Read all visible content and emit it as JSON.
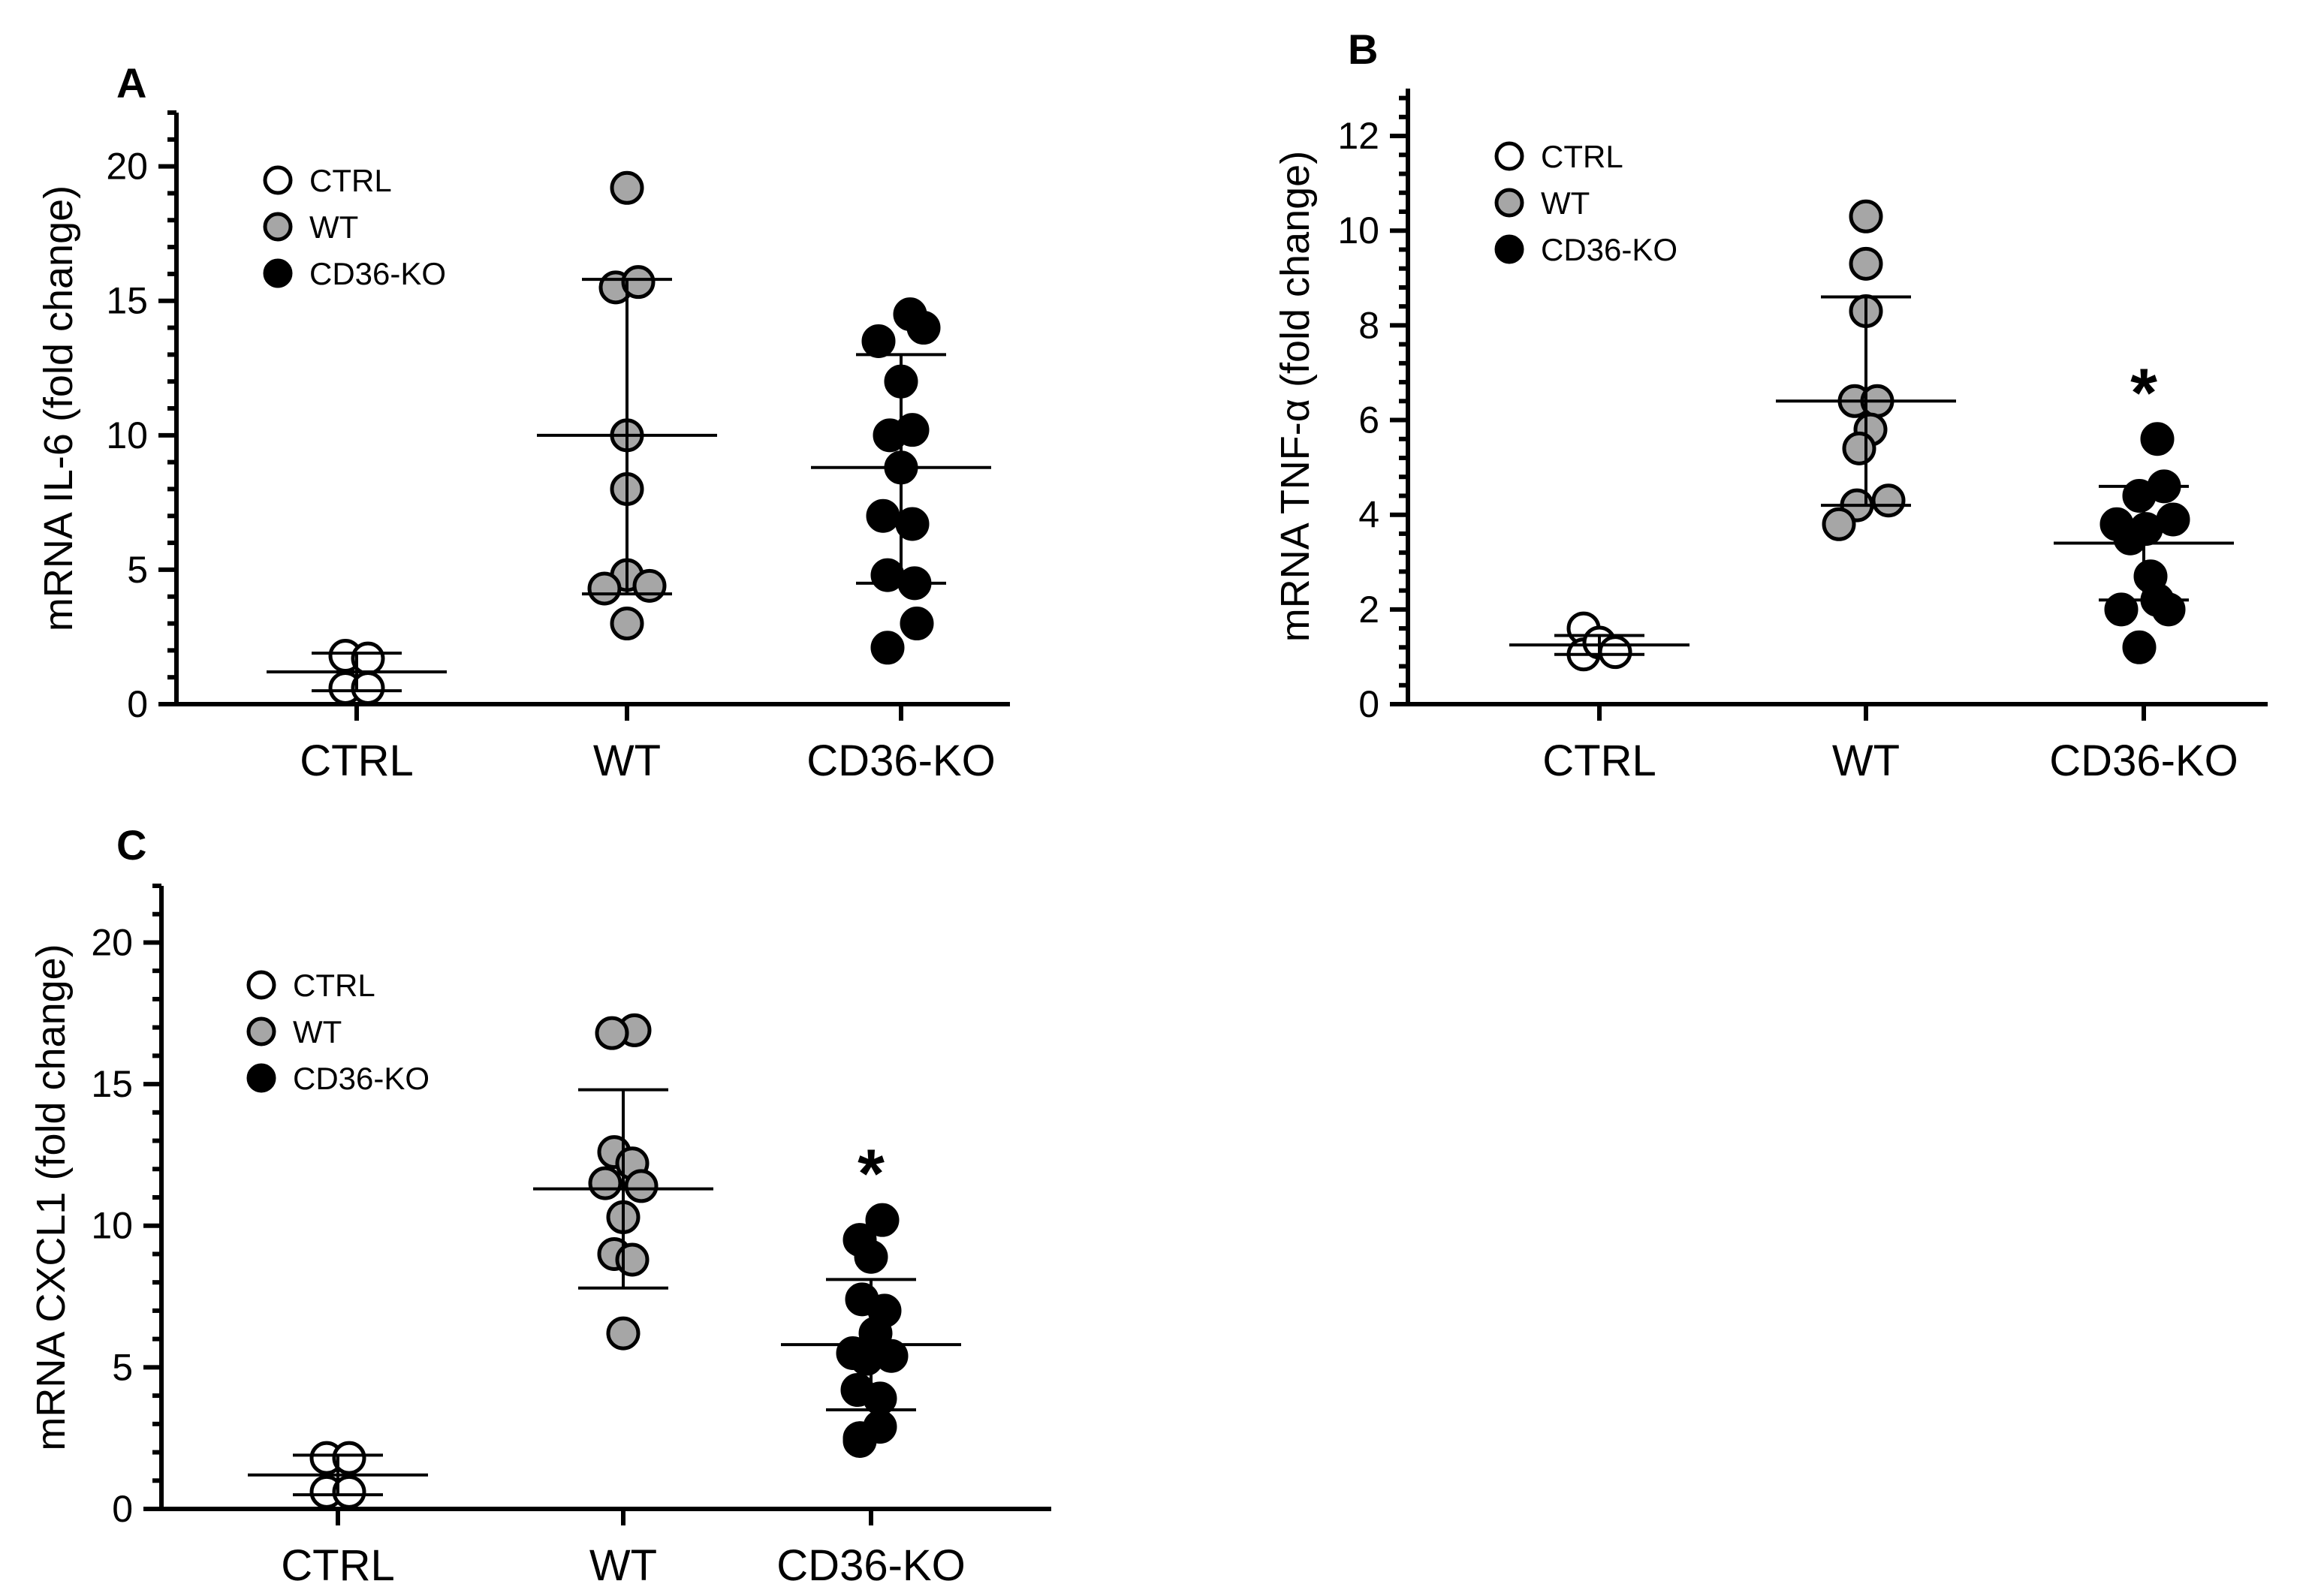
{
  "colors": {
    "CTRL": "#ffffff",
    "WT": "#a6a6a6",
    "CD36-KO": "#000000",
    "stroke": "#000000"
  },
  "chart_data": [
    {
      "type": "scatter",
      "panel": "A",
      "ylabel": "mRNA IL-6 (fold change)",
      "ylim": [
        0,
        22
      ],
      "yticks": [
        0,
        5,
        10,
        15,
        20
      ],
      "categories": [
        "CTRL",
        "WT",
        "CD36-KO"
      ],
      "legend": [
        "CTRL",
        "WT",
        "CD36-KO"
      ],
      "legend_position": "top-left",
      "annotations": [],
      "groups": [
        {
          "name": "CTRL",
          "mean": 1.2,
          "sd_low": 0.5,
          "sd_high": 1.9,
          "points": [
            1.8,
            1.7,
            0.6,
            0.6
          ],
          "offsets": [
            -0.5,
            0.5,
            -0.5,
            0.5
          ]
        },
        {
          "name": "WT",
          "mean": 10.0,
          "sd_low": 4.1,
          "sd_high": 15.8,
          "points": [
            19.2,
            15.5,
            15.7,
            10.0,
            8.0,
            4.8,
            4.3,
            4.4,
            3.0
          ],
          "offsets": [
            0,
            -0.5,
            0.5,
            0,
            0,
            0,
            -1,
            1,
            0
          ]
        },
        {
          "name": "CD36-KO",
          "mean": 8.8,
          "sd_low": 4.5,
          "sd_high": 13.0,
          "points": [
            14.5,
            14.0,
            13.5,
            12.0,
            10.2,
            10.0,
            8.8,
            7.0,
            6.7,
            4.8,
            4.5,
            3.0,
            2.1
          ],
          "offsets": [
            0.4,
            1.0,
            -1.0,
            0,
            0.5,
            -0.5,
            0,
            -0.8,
            0.5,
            -0.6,
            0.6,
            0.7,
            -0.6
          ]
        }
      ]
    },
    {
      "type": "scatter",
      "panel": "B",
      "ylabel": "mRNA TNF-α (fold change)",
      "ylim": [
        0,
        13
      ],
      "yticks": [
        0,
        2,
        4,
        6,
        8,
        10,
        12
      ],
      "categories": [
        "CTRL",
        "WT",
        "CD36-KO"
      ],
      "legend": [
        "CTRL",
        "WT",
        "CD36-KO"
      ],
      "legend_position": "top-left",
      "annotations": [
        {
          "group": "CD36-KO",
          "text": "*"
        }
      ],
      "groups": [
        {
          "name": "CTRL",
          "mean": 1.25,
          "sd_low": 1.05,
          "sd_high": 1.45,
          "points": [
            1.6,
            1.05,
            1.3,
            1.1
          ],
          "offsets": [
            -0.7,
            -0.7,
            0.0,
            0.7
          ]
        },
        {
          "name": "WT",
          "mean": 6.4,
          "sd_low": 4.2,
          "sd_high": 8.6,
          "points": [
            10.3,
            9.3,
            8.3,
            6.4,
            6.4,
            5.8,
            5.4,
            4.3,
            4.2,
            3.8
          ],
          "offsets": [
            0,
            0,
            0,
            -0.5,
            0.5,
            0.2,
            -0.3,
            1.0,
            -0.4,
            -1.2
          ]
        },
        {
          "name": "CD36-KO",
          "mean": 3.4,
          "sd_low": 2.2,
          "sd_high": 4.6,
          "points": [
            5.6,
            4.6,
            4.4,
            3.9,
            3.8,
            3.7,
            3.5,
            2.7,
            2.0,
            2.2,
            2.0,
            1.2
          ],
          "offsets": [
            0.6,
            0.9,
            -0.2,
            1.3,
            -1.2,
            0.1,
            -0.6,
            0.3,
            -1.0,
            0.6,
            1.1,
            -0.2
          ]
        }
      ]
    },
    {
      "type": "scatter",
      "panel": "C",
      "ylabel": "mRNA CXCL1 (fold change)",
      "ylim": [
        0,
        22
      ],
      "yticks": [
        0,
        5,
        10,
        15,
        20
      ],
      "categories": [
        "CTRL",
        "WT",
        "CD36-KO"
      ],
      "legend": [
        "CTRL",
        "WT",
        "CD36-KO"
      ],
      "legend_position": "top-left",
      "annotations": [
        {
          "group": "CD36-KO",
          "text": "*"
        }
      ],
      "groups": [
        {
          "name": "CTRL",
          "mean": 1.2,
          "sd_low": 0.5,
          "sd_high": 1.9,
          "points": [
            1.8,
            1.8,
            0.6,
            0.6
          ],
          "offsets": [
            -0.5,
            0.5,
            -0.5,
            0.5
          ]
        },
        {
          "name": "WT",
          "mean": 11.3,
          "sd_low": 7.8,
          "sd_high": 14.8,
          "points": [
            16.9,
            16.8,
            12.6,
            12.2,
            11.5,
            11.4,
            10.3,
            9.0,
            8.8,
            6.2
          ],
          "offsets": [
            0.5,
            -0.5,
            -0.4,
            0.4,
            -0.8,
            0.8,
            0,
            -0.4,
            0.4,
            0
          ]
        },
        {
          "name": "CD36-KO",
          "mean": 5.8,
          "sd_low": 3.5,
          "sd_high": 8.1,
          "points": [
            10.2,
            9.5,
            8.9,
            7.4,
            7.0,
            6.2,
            5.5,
            5.4,
            5.3,
            4.2,
            3.9,
            2.9,
            2.5,
            2.4
          ],
          "offsets": [
            0.5,
            -0.5,
            0,
            -0.4,
            0.6,
            0.2,
            -0.8,
            0.9,
            -0.2,
            -0.6,
            0.4,
            0.4,
            -0.5,
            -0.5
          ]
        }
      ]
    }
  ]
}
